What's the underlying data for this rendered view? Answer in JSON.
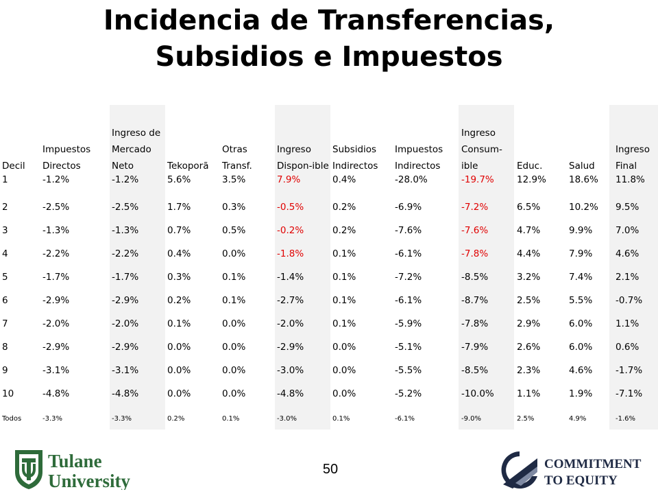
{
  "title": {
    "line1": "Incidencia de Transferencias,",
    "line2": "Subsidios e Impuestos"
  },
  "table": {
    "headers": [
      "Decil",
      "Impuestos Directos",
      "Ingreso de Mercado Neto",
      "Tekoporã",
      "Otras Transf.",
      "Ingreso Dispon-ible",
      "Subsidios Indirectos",
      "Impuestos Indirectos",
      "Ingreso Consum-ible",
      "Educ.",
      "Salud",
      "Ingreso Final"
    ],
    "rows": [
      [
        "1",
        "-1.2%",
        "-1.2%",
        "5.6%",
        "3.5%",
        "7.9%",
        "0.4%",
        "-28.0%",
        "-19.7%",
        "12.9%",
        "18.6%",
        "11.8%"
      ],
      [
        "2",
        "-2.5%",
        "-2.5%",
        "1.7%",
        "0.3%",
        "-0.5%",
        "0.2%",
        "-6.9%",
        "-7.2%",
        "6.5%",
        "10.2%",
        "9.5%"
      ],
      [
        "3",
        "-1.3%",
        "-1.3%",
        "0.7%",
        "0.5%",
        "-0.2%",
        "0.2%",
        "-7.6%",
        "-7.6%",
        "4.7%",
        "9.9%",
        "7.0%"
      ],
      [
        "4",
        "-2.2%",
        "-2.2%",
        "0.4%",
        "0.0%",
        "-1.8%",
        "0.1%",
        "-6.1%",
        "-7.8%",
        "4.4%",
        "7.9%",
        "4.6%"
      ],
      [
        "5",
        "-1.7%",
        "-1.7%",
        "0.3%",
        "0.1%",
        "-1.4%",
        "0.1%",
        "-7.2%",
        "-8.5%",
        "3.2%",
        "7.4%",
        "2.1%"
      ],
      [
        "6",
        "-2.9%",
        "-2.9%",
        "0.2%",
        "0.1%",
        "-2.7%",
        "0.1%",
        "-6.1%",
        "-8.7%",
        "2.5%",
        "5.5%",
        "-0.7%"
      ],
      [
        "7",
        "-2.0%",
        "-2.0%",
        "0.1%",
        "0.0%",
        "-2.0%",
        "0.1%",
        "-5.9%",
        "-7.8%",
        "2.9%",
        "6.0%",
        "1.1%"
      ],
      [
        "8",
        "-2.9%",
        "-2.9%",
        "0.0%",
        "0.0%",
        "-2.9%",
        "0.0%",
        "-5.1%",
        "-7.9%",
        "2.6%",
        "6.0%",
        "0.6%"
      ],
      [
        "9",
        "-3.1%",
        "-3.1%",
        "0.0%",
        "0.0%",
        "-3.0%",
        "0.0%",
        "-5.5%",
        "-8.5%",
        "2.3%",
        "4.6%",
        "-1.7%"
      ],
      [
        "10",
        "-4.8%",
        "-4.8%",
        "0.0%",
        "0.0%",
        "-4.8%",
        "0.0%",
        "-5.2%",
        "-10.0%",
        "1.1%",
        "1.9%",
        "-7.1%"
      ],
      [
        "Todos",
        "-3.3%",
        "-3.3%",
        "0.2%",
        "0.1%",
        "-3.0%",
        "0.1%",
        "-6.1%",
        "-9.0%",
        "2.5%",
        "4.9%",
        "-1.6%"
      ]
    ],
    "highlighted_cells": [
      [
        0,
        5
      ],
      [
        0,
        8
      ],
      [
        1,
        5
      ],
      [
        1,
        8
      ],
      [
        2,
        5
      ],
      [
        2,
        8
      ],
      [
        3,
        5
      ],
      [
        3,
        8
      ]
    ],
    "highlight_color": "#e00000",
    "shaded_columns": [
      2,
      5,
      8,
      11
    ],
    "shade_color": "#f2f2f2"
  },
  "footer": {
    "page_number": "50",
    "logo_left": {
      "icon": "tulane-shield-icon",
      "line1": "Tulane",
      "line2": "University",
      "color": "#2e6b3a"
    },
    "logo_right": {
      "icon": "ceq-emblem-icon",
      "line1": "COMMITMENT",
      "line2": "TO EQUITY",
      "color": "#1f2a44"
    }
  }
}
